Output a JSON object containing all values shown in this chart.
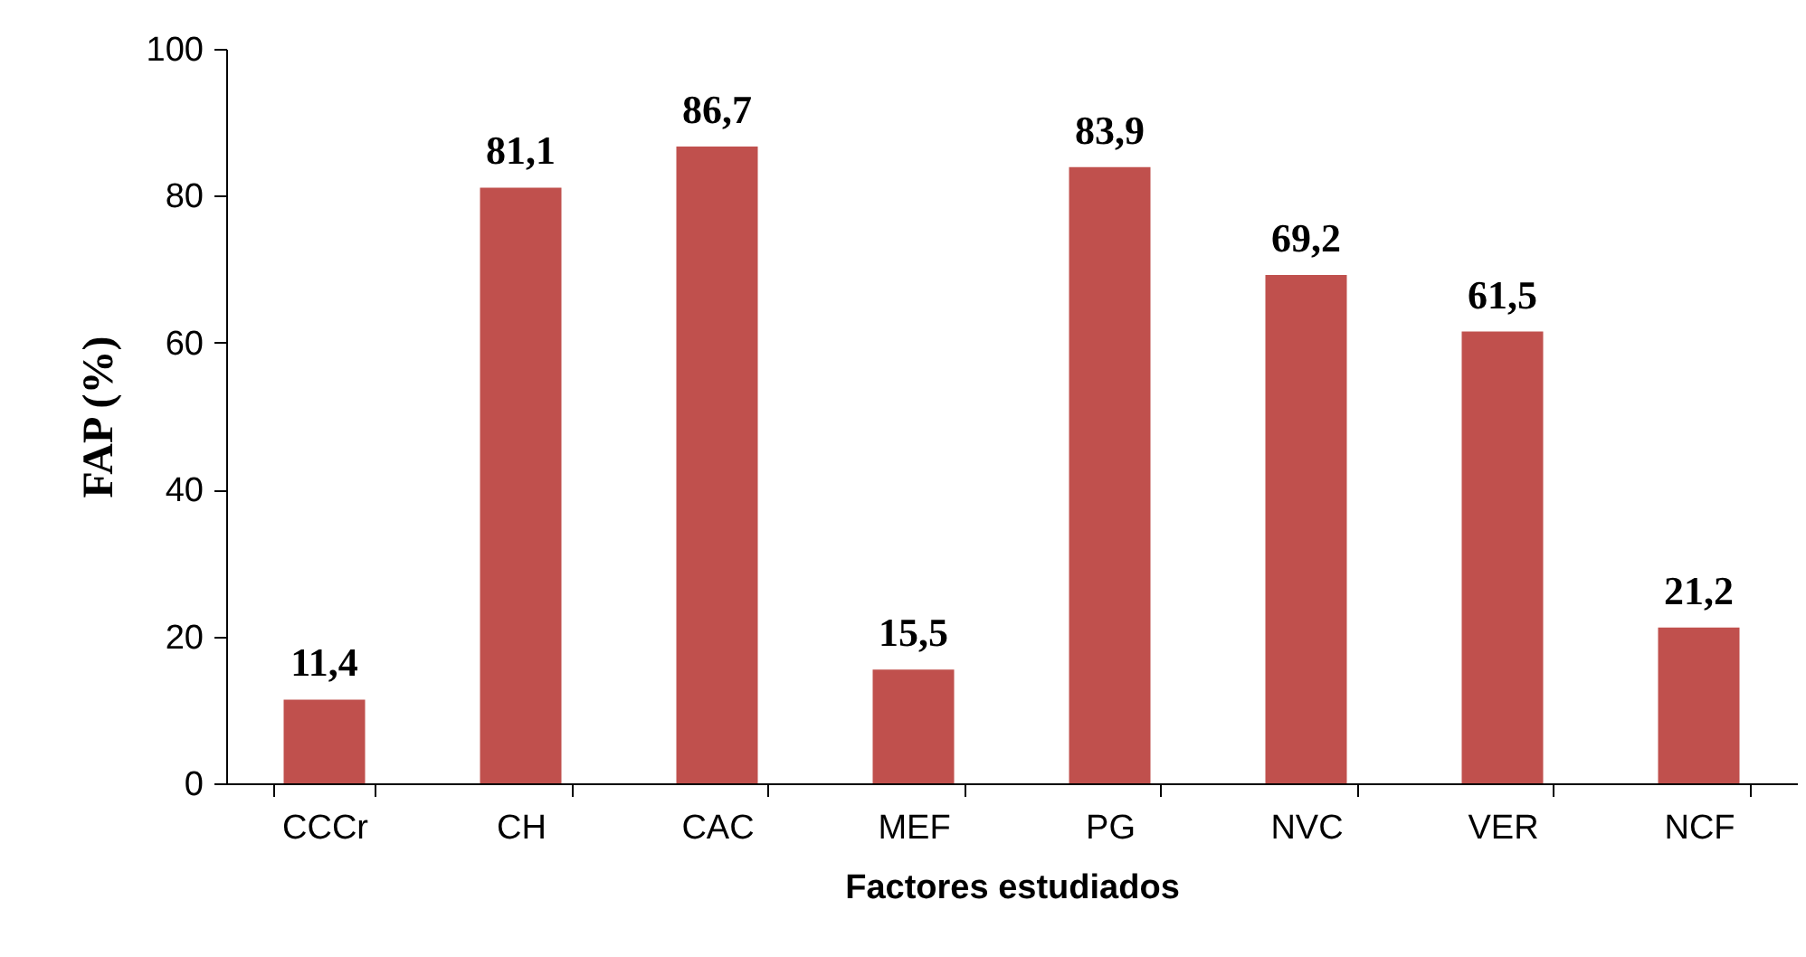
{
  "chart_data": {
    "type": "bar",
    "xlabel": "Factores estudiados",
    "ylabel": "FAP (%)",
    "categories": [
      "CCCr",
      "CH",
      "CAC",
      "MEF",
      "PG",
      "NVC",
      "VER",
      "NCF"
    ],
    "values": [
      11.4,
      81.1,
      86.7,
      15.5,
      83.9,
      69.2,
      61.5,
      21.2
    ],
    "value_labels": [
      "11,4",
      "81,1",
      "86,7",
      "15,5",
      "83,9",
      "69,2",
      "61,5",
      "21,2"
    ],
    "color": "#c0504d",
    "ylim": [
      0,
      100
    ],
    "yticks": [
      0,
      20,
      40,
      60,
      80,
      100
    ],
    "grid": false
  }
}
